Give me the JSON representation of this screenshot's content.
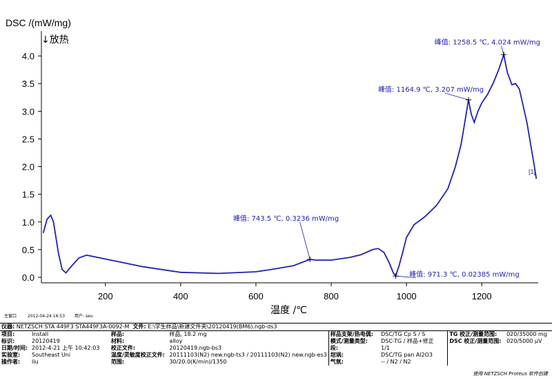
{
  "chart_data": {
    "type": "line",
    "ylabel": "DSC /(mW/mg)",
    "ylabel_sub": "↓放热",
    "xlabel": "温度 /℃",
    "xlim": [
      30,
      1350
    ],
    "ylim": [
      -0.1,
      4.45
    ],
    "x_ticks": [
      200,
      400,
      600,
      800,
      1000,
      1200
    ],
    "y_ticks": [
      0.0,
      0.5,
      1.0,
      1.5,
      2.0,
      2.5,
      3.0,
      3.5,
      4.0
    ],
    "grid": false,
    "series": [
      {
        "color": "#2020b0",
        "x": [
          35,
          45,
          55,
          62,
          68,
          75,
          85,
          95,
          110,
          130,
          150,
          200,
          300,
          400,
          500,
          600,
          650,
          700,
          743.5,
          760,
          800,
          850,
          880,
          910,
          925,
          940,
          955,
          965,
          971.3,
          980,
          990,
          1000,
          1020,
          1050,
          1080,
          1110,
          1130,
          1145,
          1155,
          1164.9,
          1172,
          1180,
          1190,
          1200,
          1215,
          1230,
          1245,
          1258.5,
          1268,
          1280,
          1290,
          1300,
          1310,
          1320,
          1330,
          1340,
          1345
        ],
        "y": [
          0.8,
          1.05,
          1.12,
          1.0,
          0.75,
          0.45,
          0.14,
          0.08,
          0.2,
          0.35,
          0.4,
          0.33,
          0.19,
          0.09,
          0.07,
          0.1,
          0.15,
          0.21,
          0.3236,
          0.31,
          0.31,
          0.36,
          0.41,
          0.5,
          0.52,
          0.45,
          0.25,
          0.08,
          0.02385,
          0.2,
          0.45,
          0.72,
          0.95,
          1.1,
          1.3,
          1.6,
          2.0,
          2.4,
          2.8,
          3.207,
          2.95,
          2.8,
          3.0,
          3.15,
          3.3,
          3.5,
          3.75,
          4.024,
          3.7,
          3.48,
          3.5,
          3.4,
          3.1,
          2.8,
          2.4,
          2.0,
          1.78
        ]
      }
    ],
    "annotations": [
      {
        "text": "峰值: 1258.5 ℃, 4.024 mW/mg",
        "x": 1258.5,
        "y": 4.024,
        "label_x": 1215,
        "label_y": 4.18
      },
      {
        "text": "峰值: 1164.9 ℃, 3.207 mW/mg",
        "x": 1164.9,
        "y": 3.207,
        "label_x": 1065,
        "label_y": 3.33
      },
      {
        "text": "峰值: 743.5 ℃, 0.3236 mW/mg",
        "x": 743.5,
        "y": 0.3236,
        "label_x": 680,
        "label_y": 1.0
      },
      {
        "text": "峰值: 971.3 ℃, 0.02385 mW/mg",
        "x": 971.3,
        "y": 0.02385,
        "label_x": 1300,
        "label_y": -0.01
      }
    ],
    "end_marker": "[1]"
  },
  "meta": {
    "stamp_left": "主窗口",
    "stamp_time": "2012-04-24 16:53",
    "stamp_user": "用户: seu"
  },
  "info": {
    "instrument_label": "仪器:",
    "instrument_value": "NETZSCH STA 449F3 STA449F3A-0092-M",
    "file_label": "文件:",
    "file_value": "E:\\学生样品\\新建文件夹\\20120419(BM6).ngb-ds3",
    "rows": [
      {
        "l1": "项目:",
        "v1": "Install",
        "l2": "样品:",
        "v2": "样品, 18.2 mg",
        "l3": "样品支架/热电偶:",
        "v3": "DSC/TG Cp S / S",
        "l4": "TG 校正/测量范围:",
        "v4": "020/35000 mg"
      },
      {
        "l1": "标识:",
        "v1": "20120419",
        "l2": "材料:",
        "v2": "alloy",
        "l3": "模式/测量类型:",
        "v3": "DSC-TG / 样品+修正",
        "l4": "DSC 校正/测量范围:",
        "v4": "020/5000 µV"
      },
      {
        "l1": "日期/时间:",
        "v1": "2012-4-21 上午 10:42:03",
        "l2": "校正文件:",
        "v2": "20120419.ngb-bs3",
        "l3": "段:",
        "v3": "1/1",
        "l4": "",
        "v4": ""
      },
      {
        "l1": "实验室:",
        "v1": "Southeast Uni",
        "l2": "温度/灵敏度校正文件:",
        "v2": "20111103(N2) new.ngb-ts3 / 20111103(N2) new.ngb-es3",
        "l3": "坩埚:",
        "v3": "DSC/TG pan Al2O3",
        "l4": "",
        "v4": ""
      },
      {
        "l1": "操作者:",
        "v1": "liu",
        "l2": "范围:",
        "v2": "30/20.0(K/min)/1350",
        "l3": "气氛:",
        "v3": "-- / N2 / N2",
        "l4": "",
        "v4": ""
      }
    ],
    "footer": "使用 NETZSCH Proteus 软件创建"
  }
}
